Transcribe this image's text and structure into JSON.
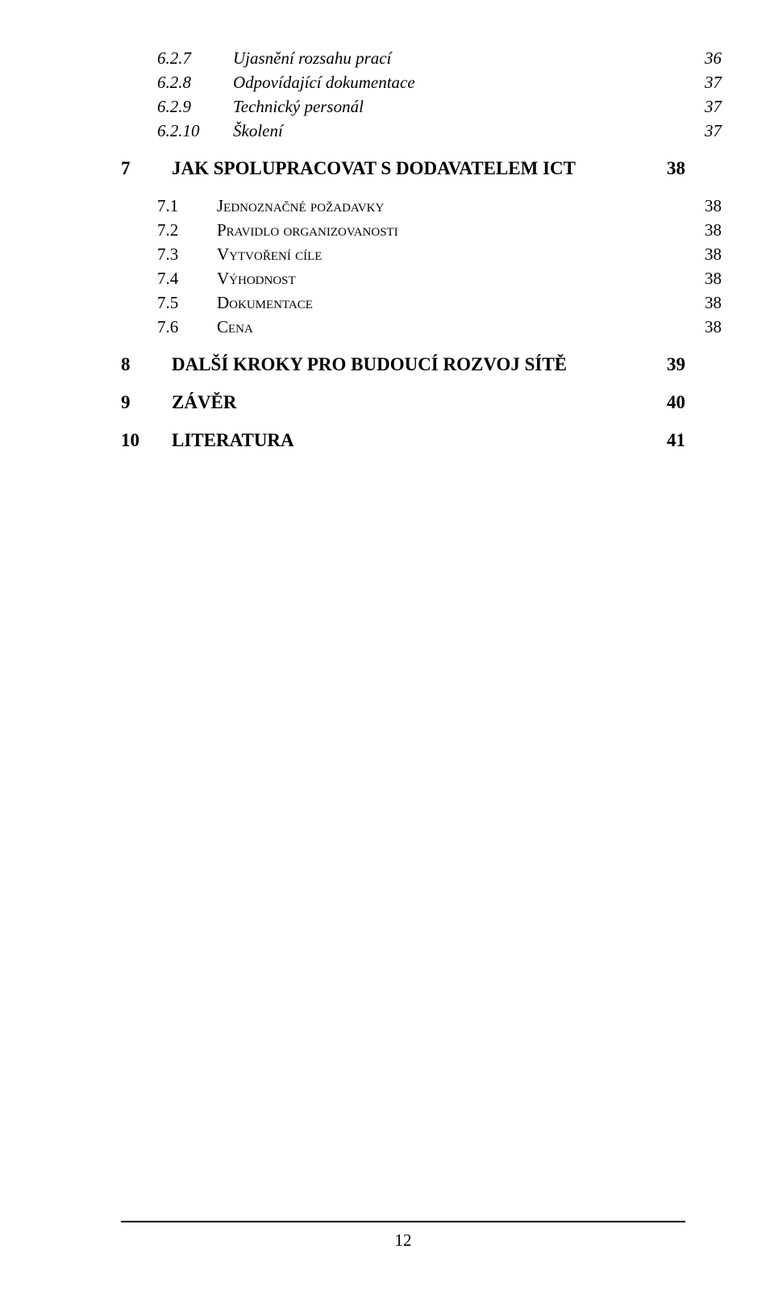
{
  "items": [
    {
      "level": "a",
      "num": "6.2.7",
      "label": "Ujasnění rozsahu prací",
      "page": "36",
      "italic": true
    },
    {
      "level": "a",
      "num": "6.2.8",
      "label": "Odpovídající dokumentace",
      "page": "37",
      "italic": true
    },
    {
      "level": "a",
      "num": "6.2.9",
      "label": "Technický personál",
      "page": "37",
      "italic": true
    },
    {
      "level": "a",
      "num": "6.2.10",
      "label": "Školení",
      "page": "37",
      "italic": true
    },
    {
      "level": "gap"
    },
    {
      "level": "b",
      "num": "7",
      "label": "JAK SPOLUPRACOVAT S DODAVATELEM ICT",
      "page": "38",
      "bold": true
    },
    {
      "level": "gap"
    },
    {
      "level": "c",
      "num": "7.1",
      "label": "Jednoznačné požadavky",
      "page": "38",
      "smallcaps": true
    },
    {
      "level": "c",
      "num": "7.2",
      "label": "Pravidlo organizovanosti",
      "page": "38",
      "smallcaps": true
    },
    {
      "level": "c",
      "num": "7.3",
      "label": "Vytvoření cíle",
      "page": "38",
      "smallcaps": true
    },
    {
      "level": "c",
      "num": "7.4",
      "label": "Výhodnost",
      "page": "38",
      "smallcaps": true
    },
    {
      "level": "c",
      "num": "7.5",
      "label": "Dokumentace",
      "page": "38",
      "smallcaps": true
    },
    {
      "level": "c",
      "num": "7.6",
      "label": "Cena",
      "page": "38",
      "smallcaps": true
    },
    {
      "level": "gap"
    },
    {
      "level": "b",
      "num": "8",
      "label": "DALŠÍ KROKY PRO BUDOUCÍ ROZVOJ SÍTĚ",
      "page": "39",
      "bold": true
    },
    {
      "level": "gap"
    },
    {
      "level": "b",
      "num": "9",
      "label": "ZÁVĚR",
      "page": "40",
      "bold": true
    },
    {
      "level": "gap"
    },
    {
      "level": "b",
      "num": "10",
      "label": "LITERATURA",
      "page": "41",
      "bold": true
    }
  ],
  "footer_page": "12"
}
